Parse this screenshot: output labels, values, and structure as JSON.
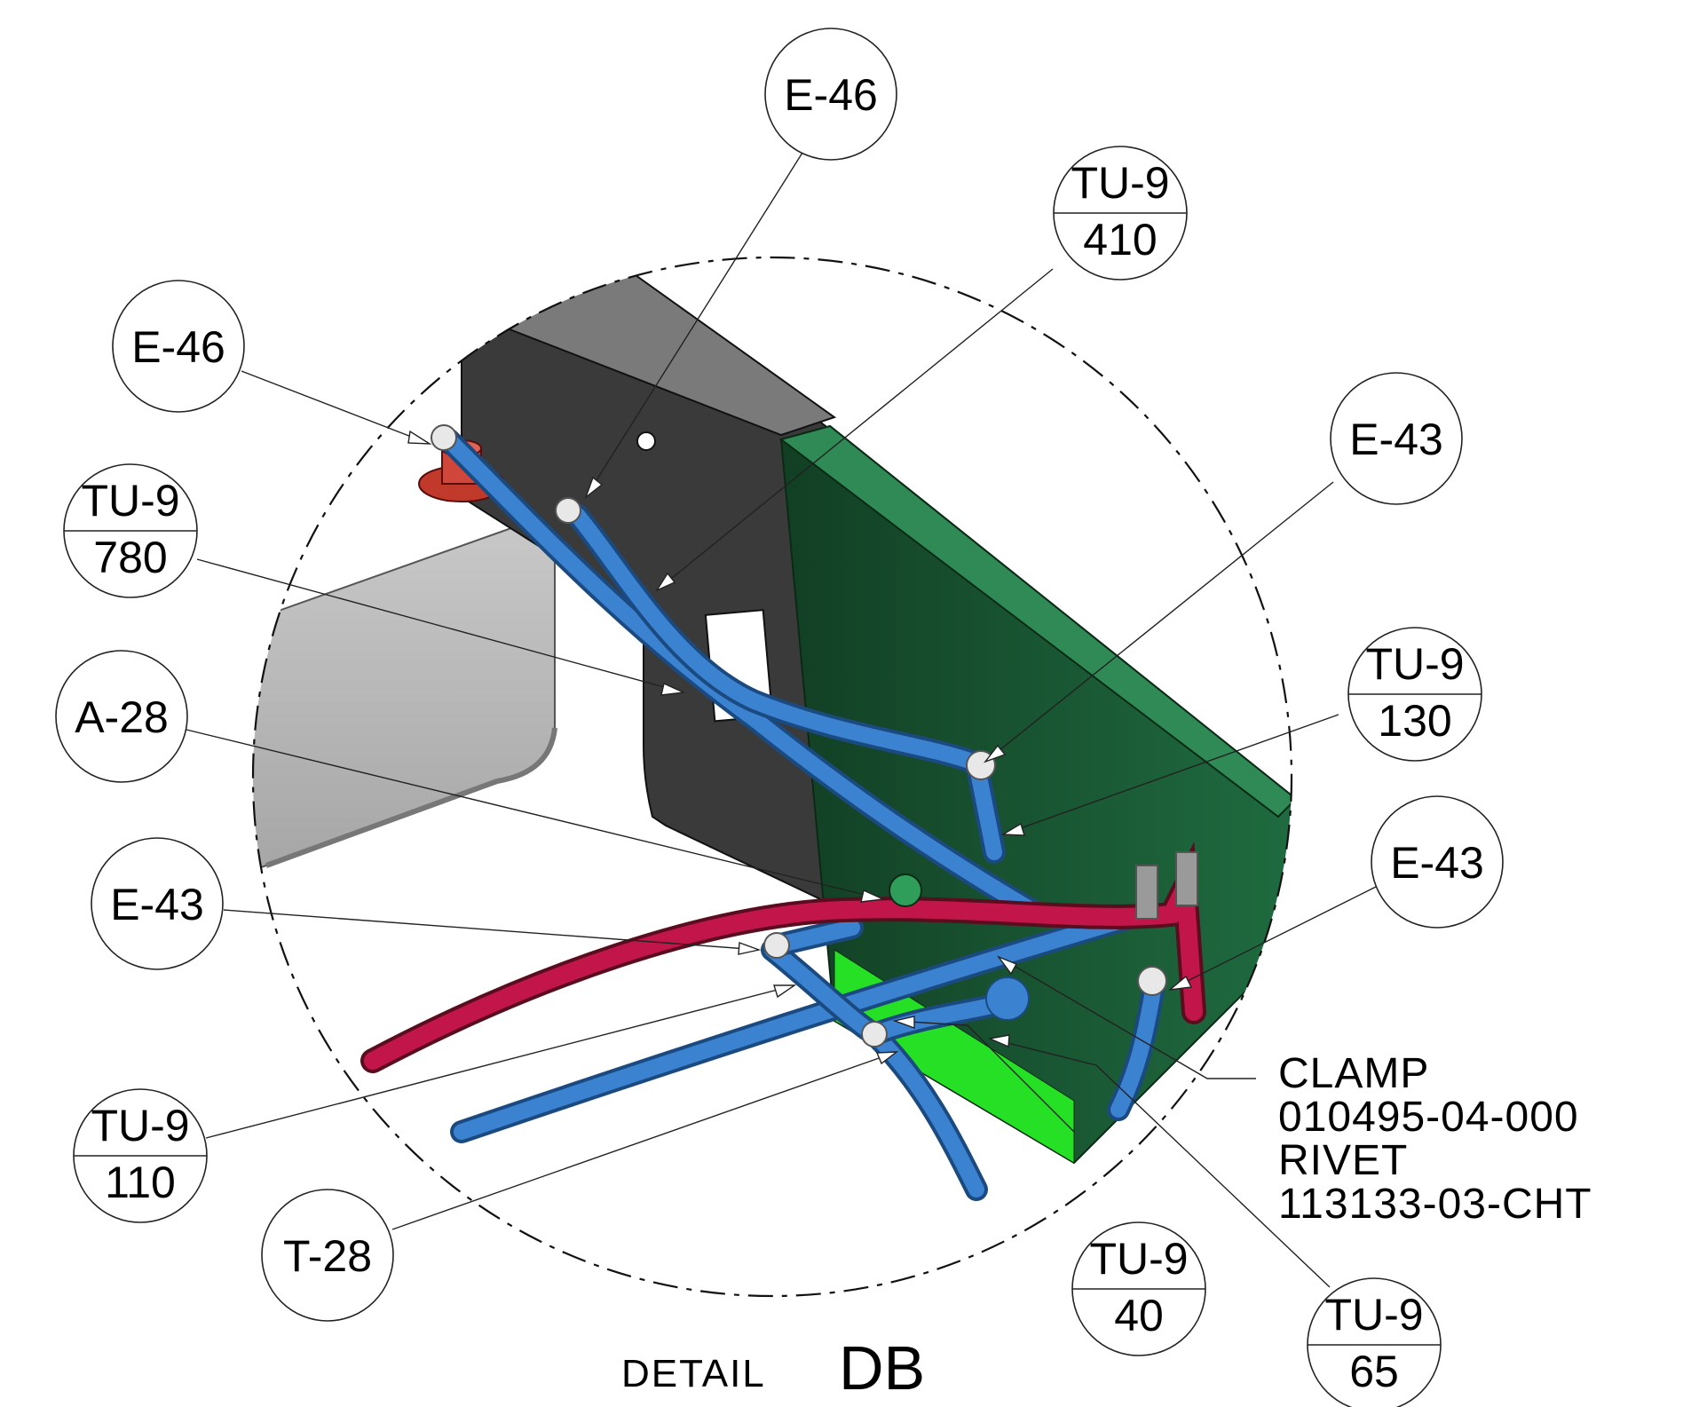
{
  "balloons": {
    "e46_top": {
      "label": "E-46"
    },
    "e46_left": {
      "label": "E-46"
    },
    "tu9_410": {
      "top": "TU-9",
      "bottom": "410"
    },
    "tu9_780": {
      "top": "TU-9",
      "bottom": "780"
    },
    "e43_right_upper": {
      "label": "E-43"
    },
    "tu9_130": {
      "top": "TU-9",
      "bottom": "130"
    },
    "a28": {
      "label": "A-28"
    },
    "e43_right_lower": {
      "label": "E-43"
    },
    "e43_left": {
      "label": "E-43"
    },
    "tu9_110": {
      "top": "TU-9",
      "bottom": "110"
    },
    "t28": {
      "label": "T-28"
    },
    "tu9_40": {
      "top": "TU-9",
      "bottom": "40"
    },
    "tu9_65": {
      "top": "TU-9",
      "bottom": "65"
    }
  },
  "note": {
    "line1": "CLAMP",
    "line2": "010495-04-000",
    "line3": "RIVET",
    "line4": "113133-03-CHT"
  },
  "detail_label": {
    "prefix": "DETAIL",
    "name": "DB"
  },
  "colors": {
    "tube_blue": "#2e6fb5",
    "tube_red": "#b0143c",
    "panel_green": "#1f6b40",
    "panel_dark": "#3a3a3a",
    "panel_light_grey": "#bfbfbf"
  }
}
